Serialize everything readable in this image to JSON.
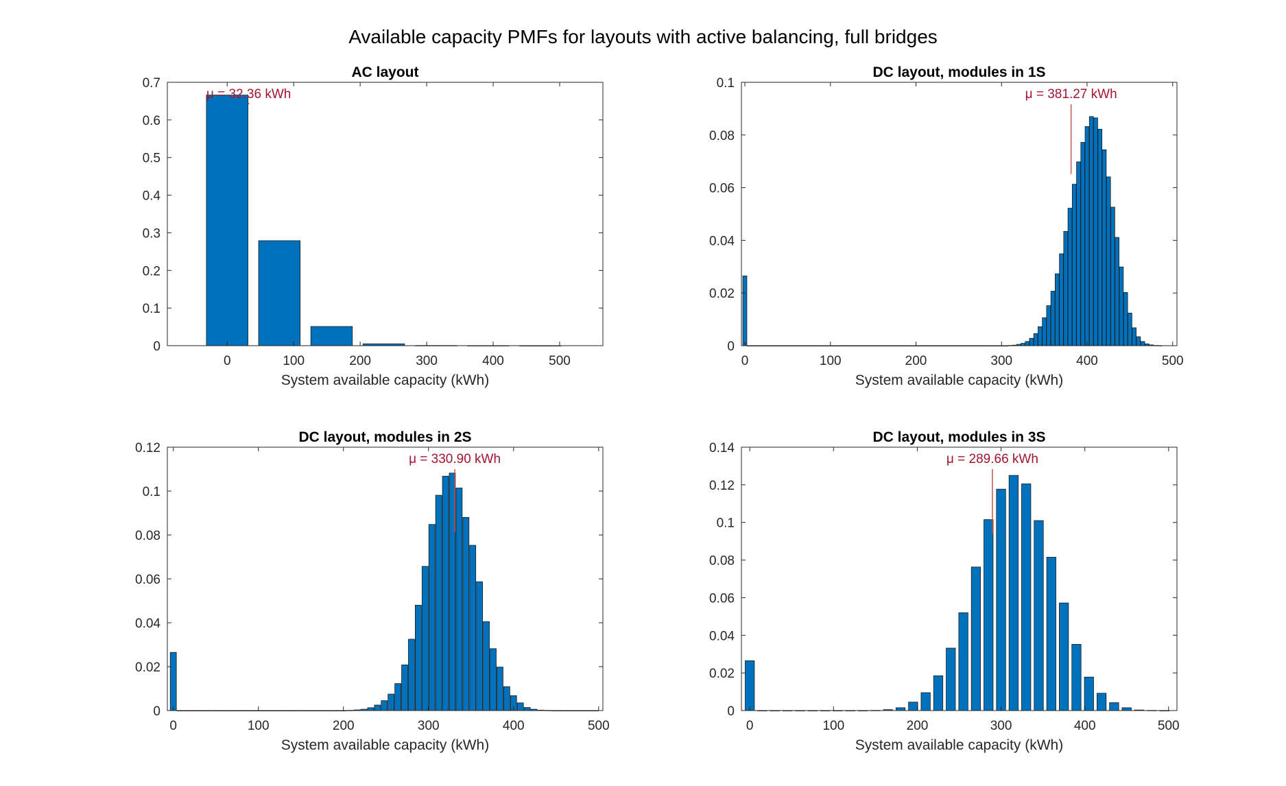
{
  "figure": {
    "title": "Available capacity PMFs for layouts with active balancing, full bridges"
  },
  "colors": {
    "bar": "#0072BD",
    "edge": "#1a1a1a",
    "mean_line": "#c0554d",
    "mean_text": "#a2142f"
  },
  "chart_data": [
    {
      "type": "bar",
      "title": "AC layout",
      "xlabel": "System available capacity (kWh)",
      "ylabel": "",
      "xlim": [
        -90,
        565
      ],
      "ylim": [
        0,
        0.7
      ],
      "xticks": [
        0,
        100,
        200,
        300,
        400,
        500
      ],
      "yticks": [
        0,
        0.1,
        0.2,
        0.3,
        0.4,
        0.5,
        0.6,
        0.7
      ],
      "yticklabels": [
        "0",
        "0.1",
        "0.2",
        "0.3",
        "0.4",
        "0.5",
        "0.6",
        "0.7"
      ],
      "bar_width": 62.5,
      "x": [
        0,
        78.5,
        157,
        235.5,
        314,
        392.5,
        471
      ],
      "values": [
        0.666,
        0.279,
        0.051,
        0.005,
        0.0005,
        0.0002,
        0.0001
      ],
      "mean": 32.36,
      "mean_label": "μ = 32.36 kWh"
    },
    {
      "type": "bar",
      "title": "DC layout, modules in 1S",
      "xlabel": "System available capacity (kWh)",
      "ylabel": "",
      "xlim": [
        -4,
        505
      ],
      "ylim": [
        0,
        0.1
      ],
      "xticks": [
        0,
        100,
        200,
        300,
        400,
        500
      ],
      "yticks": [
        0,
        0.02,
        0.04,
        0.06,
        0.08,
        0.1
      ],
      "yticklabels": [
        "0",
        "0.02",
        "0.04",
        "0.06",
        "0.08",
        "0.1"
      ],
      "bar_width": 4.7,
      "x": [
        0,
        5,
        10,
        15,
        20,
        25,
        30,
        35,
        40,
        45,
        50,
        55,
        60,
        65,
        70,
        75,
        80,
        85,
        90,
        95,
        100,
        105,
        110,
        115,
        120,
        125,
        130,
        135,
        140,
        145,
        150,
        155,
        160,
        165,
        170,
        175,
        180,
        185,
        190,
        195,
        200,
        205,
        210,
        215,
        220,
        225,
        230,
        235,
        240,
        245,
        250,
        255,
        260,
        265,
        270,
        275,
        280,
        285,
        290,
        295,
        300,
        305,
        310,
        315,
        320,
        325,
        330,
        335,
        340,
        345,
        350,
        355,
        360,
        365,
        370,
        375,
        380,
        385,
        390,
        395,
        400,
        405,
        410,
        415,
        420,
        425,
        430,
        435,
        440,
        445,
        450,
        455,
        460,
        465,
        470,
        475,
        480,
        485
      ],
      "values": [
        0.0265,
        0,
        0,
        0,
        0,
        0,
        0,
        0,
        0,
        0,
        0,
        0,
        0,
        0,
        0,
        0,
        0,
        0,
        0,
        0,
        0,
        0,
        0,
        0,
        0,
        0,
        0,
        0,
        0,
        0,
        0,
        0,
        0,
        0,
        0,
        0,
        0,
        0,
        0,
        0,
        0,
        0,
        0,
        0,
        0,
        0,
        0,
        0,
        0,
        0,
        0,
        0,
        0,
        0,
        0,
        0,
        0,
        0,
        0,
        0,
        0,
        0,
        0.0001,
        0.0002,
        0.0005,
        0.0009,
        0.0016,
        0.0028,
        0.0046,
        0.0072,
        0.0106,
        0.0152,
        0.0207,
        0.0273,
        0.0349,
        0.0434,
        0.0522,
        0.0613,
        0.0698,
        0.0772,
        0.0832,
        0.087,
        0.0865,
        0.0822,
        0.0744,
        0.0641,
        0.0526,
        0.0411,
        0.0299,
        0.0202,
        0.0124,
        0.0068,
        0.0034,
        0.0016,
        0.0007,
        0.0003,
        0.0001,
        5e-05
      ],
      "mean": 381.27,
      "mean_label": "μ = 381.27 kWh"
    },
    {
      "type": "bar",
      "title": "DC layout, modules in 2S",
      "xlabel": "System available capacity (kWh)",
      "ylabel": "",
      "xlim": [
        -7,
        505
      ],
      "ylim": [
        0,
        0.12
      ],
      "xticks": [
        0,
        100,
        200,
        300,
        400,
        500
      ],
      "yticks": [
        0,
        0.02,
        0.04,
        0.06,
        0.08,
        0.1,
        0.12
      ],
      "yticklabels": [
        "0",
        "0.02",
        "0.04",
        "0.06",
        "0.08",
        "0.1",
        "0.12"
      ],
      "bar_width": 7.2,
      "x": [
        0,
        8,
        16,
        24,
        32,
        40,
        48,
        56,
        64,
        72,
        80,
        88,
        96,
        104,
        112,
        120,
        128,
        136,
        144,
        152,
        160,
        168,
        176,
        184,
        192,
        200,
        208,
        216,
        224,
        232,
        240,
        248,
        256,
        264,
        272,
        280,
        288,
        296,
        304,
        312,
        320,
        328,
        336,
        344,
        352,
        360,
        368,
        376,
        384,
        392,
        400,
        408,
        416,
        424,
        432,
        440,
        448,
        456,
        464,
        472,
        480,
        488,
        496
      ],
      "values": [
        0.0265,
        0,
        0,
        0,
        0,
        0,
        0,
        0,
        0,
        0,
        0,
        0,
        0,
        0,
        0,
        0,
        0,
        0,
        0,
        0,
        0,
        0,
        0,
        0,
        0,
        0,
        0.0001,
        0.0003,
        0.0006,
        0.0013,
        0.0025,
        0.0045,
        0.0075,
        0.0123,
        0.0208,
        0.0325,
        0.048,
        0.0657,
        0.0848,
        0.0981,
        0.1068,
        0.1082,
        0.1014,
        0.088,
        0.0753,
        0.0587,
        0.0405,
        0.0282,
        0.0198,
        0.0109,
        0.0068,
        0.0035,
        0.0014,
        0.0006,
        0.0002,
        0.0001,
        0,
        0,
        0,
        0,
        0,
        0,
        0
      ],
      "mean": 330.9,
      "mean_label": "μ = 330.90 kWh"
    },
    {
      "type": "bar",
      "title": "DC layout, modules in 3S",
      "xlabel": "System available capacity (kWh)",
      "ylabel": "",
      "xlim": [
        -10,
        510
      ],
      "ylim": [
        0,
        0.14
      ],
      "xticks": [
        0,
        100,
        200,
        300,
        400,
        500
      ],
      "yticks": [
        0,
        0.02,
        0.04,
        0.06,
        0.08,
        0.1,
        0.12,
        0.14
      ],
      "yticklabels": [
        "0",
        "0.02",
        "0.04",
        "0.06",
        "0.08",
        "0.1",
        "0.12",
        "0.14"
      ],
      "bar_width": 11,
      "x": [
        0,
        15,
        30,
        45,
        60,
        75,
        90,
        105,
        120,
        135,
        150,
        165,
        180,
        195,
        210,
        225,
        240,
        255,
        270,
        285,
        300,
        315,
        330,
        345,
        360,
        375,
        390,
        405,
        420,
        435,
        450,
        465,
        480,
        495
      ],
      "values": [
        0.0265,
        0,
        0,
        0,
        0,
        0,
        0,
        0,
        0,
        0,
        0.0001,
        0.0005,
        0.0015,
        0.0045,
        0.0095,
        0.0185,
        0.0332,
        0.052,
        0.0763,
        0.1015,
        0.1177,
        0.125,
        0.1205,
        0.101,
        0.0815,
        0.0572,
        0.0352,
        0.0178,
        0.0092,
        0.0042,
        0.0015,
        0.0003,
        0.0001,
        0
      ],
      "mean": 289.66,
      "mean_label": "μ = 289.66 kWh"
    }
  ]
}
